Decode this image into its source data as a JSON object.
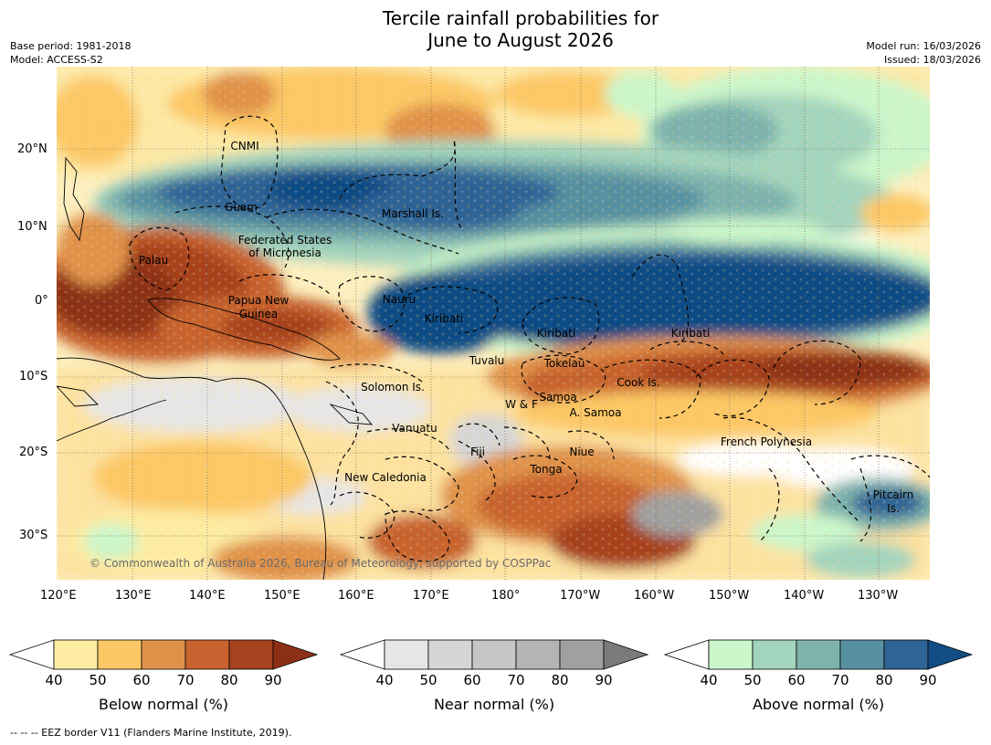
{
  "title_line1": "Tercile rainfall probabilities for",
  "title_line2": "June to August 2026",
  "base_period": "Base period: 1981-2018",
  "model": "Model: ACCESS-S2",
  "model_run": "Model run: 16/03/2026",
  "issued": "Issued: 18/03/2026",
  "map": {
    "lat_labels": [
      "20°N",
      "10°N",
      "0°",
      "10°S",
      "20°S",
      "30°S"
    ],
    "lon_labels": [
      "120°E",
      "130°E",
      "140°E",
      "150°E",
      "160°E",
      "170°E",
      "180°",
      "170°W",
      "160°W",
      "150°W",
      "140°W",
      "130°W"
    ],
    "places": [
      "CNMI",
      "Guam",
      "Marshall Is.",
      "Federated States",
      "of Micronesia",
      "Palau",
      "Papua New",
      "Guinea",
      "Nauru",
      "Kiribati",
      "Kiribati",
      "Kiribati",
      "Tuvalu",
      "Tokelau",
      "Solomon Is.",
      "Cook Is.",
      "W & F",
      "Samoa",
      "A. Samoa",
      "Vanuatu",
      "French Polynesia",
      "Fiji",
      "Niue",
      "Tonga",
      "New Caledonia",
      "Pitcairn",
      "Is."
    ],
    "copyright": "© Commonwealth of Australia 2026, Bureau of Meteorology, supported by COSPPac"
  },
  "colorbars": [
    {
      "label": "Below normal (%)",
      "ticks": [
        "40",
        "50",
        "60",
        "70",
        "80",
        "90"
      ],
      "colors": [
        "#ffffff",
        "#fdeca2",
        "#fcc865",
        "#e0924a",
        "#c8632f",
        "#a7431f",
        "#8c3015"
      ]
    },
    {
      "label": "Near normal (%)",
      "ticks": [
        "40",
        "50",
        "60",
        "70",
        "80",
        "90"
      ],
      "colors": [
        "#ffffff",
        "#e6e6e6",
        "#d6d6d6",
        "#c6c6c6",
        "#b4b4b4",
        "#a0a0a0",
        "#7a7a7a"
      ]
    },
    {
      "label": "Above normal (%)",
      "ticks": [
        "40",
        "50",
        "60",
        "70",
        "80",
        "90"
      ],
      "colors": [
        "#ffffff",
        "#cbf7cb",
        "#a3d4bd",
        "#7db2ad",
        "#5690a1",
        "#2f6496",
        "#114c84"
      ]
    }
  ],
  "footnote": "--  --  -- EEZ border V11 (Flanders Marine Institute, 2019)."
}
